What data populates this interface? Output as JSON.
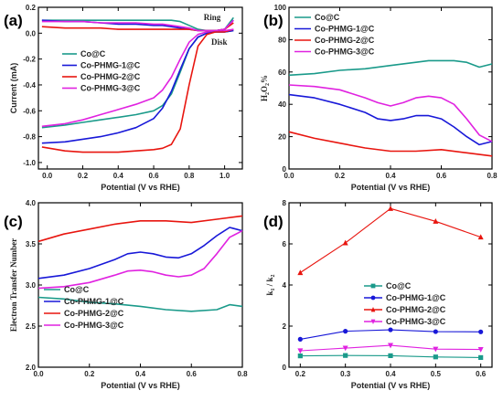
{
  "colors": {
    "s1": "#1a9a8a",
    "s2": "#1818d8",
    "s3": "#e8150f",
    "s4": "#e022e0"
  },
  "chart_data": [
    {
      "panel": "(a)",
      "type": "line",
      "xlabel": "Potential (V vs RHE)",
      "ylabel": "Current (mA)",
      "xlim": [
        -0.05,
        1.1
      ],
      "ylim": [
        -1.05,
        0.2
      ],
      "xticks": [
        "0.0",
        "0.2",
        "0.4",
        "0.6",
        "0.8",
        "1.0"
      ],
      "xtick_values": [
        0,
        0.2,
        0.4,
        0.6,
        0.8,
        1.0
      ],
      "yticks": [
        "0.2",
        "0.0",
        "-0.2",
        "-0.4",
        "-0.6",
        "-0.8",
        "-1.0"
      ],
      "ytick_values": [
        0.2,
        0,
        -0.2,
        -0.4,
        -0.6,
        -0.8,
        -1.0
      ],
      "legend_position": "middle-left",
      "annotations": [
        {
          "text": "Ring",
          "x": 0.93,
          "y": 0.1
        },
        {
          "text": "Disk",
          "x": 0.97,
          "y": -0.09
        }
      ],
      "series": [
        {
          "name": "Co@C",
          "color": "s1",
          "group": "disk",
          "x": [
            -0.03,
            0.1,
            0.2,
            0.3,
            0.4,
            0.5,
            0.6,
            0.65,
            0.7,
            0.75,
            0.8,
            0.85,
            0.9,
            0.95,
            1.0,
            1.05
          ],
          "y": [
            -0.73,
            -0.71,
            -0.69,
            -0.67,
            -0.65,
            -0.63,
            -0.6,
            -0.56,
            -0.47,
            -0.3,
            -0.12,
            -0.03,
            0.0,
            0.01,
            0.01,
            0.02
          ]
        },
        {
          "name": "Co-PHMG-1@C",
          "color": "s2",
          "group": "disk",
          "x": [
            -0.03,
            0.1,
            0.2,
            0.3,
            0.4,
            0.5,
            0.6,
            0.65,
            0.7,
            0.75,
            0.8,
            0.85,
            0.9,
            0.95,
            1.0,
            1.05
          ],
          "y": [
            -0.85,
            -0.84,
            -0.82,
            -0.8,
            -0.77,
            -0.73,
            -0.66,
            -0.58,
            -0.45,
            -0.28,
            -0.12,
            -0.03,
            0.0,
            0.01,
            0.01,
            0.02
          ]
        },
        {
          "name": "Co-PHMG-2@C",
          "color": "s3",
          "group": "disk",
          "x": [
            -0.03,
            0.1,
            0.2,
            0.3,
            0.4,
            0.5,
            0.6,
            0.65,
            0.7,
            0.75,
            0.8,
            0.85,
            0.9,
            0.95,
            1.0,
            1.05
          ],
          "y": [
            -0.88,
            -0.91,
            -0.92,
            -0.92,
            -0.92,
            -0.91,
            -0.9,
            -0.89,
            -0.86,
            -0.74,
            -0.4,
            -0.1,
            -0.01,
            0.01,
            0.01,
            0.03
          ]
        },
        {
          "name": "Co-PHMG-3@C",
          "color": "s4",
          "group": "disk",
          "x": [
            -0.03,
            0.1,
            0.2,
            0.3,
            0.4,
            0.5,
            0.6,
            0.65,
            0.7,
            0.75,
            0.8,
            0.85,
            0.9,
            0.95,
            1.0,
            1.05
          ],
          "y": [
            -0.72,
            -0.7,
            -0.67,
            -0.63,
            -0.59,
            -0.55,
            -0.5,
            -0.44,
            -0.34,
            -0.2,
            -0.07,
            -0.01,
            0.01,
            0.02,
            0.02,
            0.03
          ]
        },
        {
          "name": "Co@C",
          "color": "s1",
          "group": "ring",
          "x": [
            -0.03,
            0.1,
            0.2,
            0.3,
            0.4,
            0.5,
            0.6,
            0.65,
            0.7,
            0.75,
            0.8,
            0.85,
            0.9,
            0.95,
            1.0,
            1.05
          ],
          "y": [
            0.1,
            0.1,
            0.1,
            0.1,
            0.1,
            0.1,
            0.1,
            0.1,
            0.1,
            0.09,
            0.06,
            0.03,
            0.02,
            0.02,
            0.03,
            0.12
          ]
        },
        {
          "name": "Co-PHMG-1@C",
          "color": "s2",
          "group": "ring",
          "x": [
            -0.03,
            0.1,
            0.2,
            0.3,
            0.4,
            0.5,
            0.6,
            0.65,
            0.7,
            0.75,
            0.8,
            0.85,
            0.9,
            0.95,
            1.0,
            1.05
          ],
          "y": [
            0.1,
            0.09,
            0.09,
            0.08,
            0.07,
            0.07,
            0.06,
            0.06,
            0.05,
            0.04,
            0.03,
            0.02,
            0.02,
            0.02,
            0.03,
            0.1
          ]
        },
        {
          "name": "Co-PHMG-2@C",
          "color": "s3",
          "group": "ring",
          "x": [
            -0.03,
            0.1,
            0.2,
            0.3,
            0.4,
            0.5,
            0.6,
            0.65,
            0.7,
            0.75,
            0.8,
            0.85,
            0.9,
            0.95,
            1.0,
            1.05
          ],
          "y": [
            0.05,
            0.04,
            0.04,
            0.04,
            0.03,
            0.03,
            0.03,
            0.03,
            0.03,
            0.03,
            0.03,
            0.02,
            0.02,
            0.02,
            0.03,
            0.08
          ]
        },
        {
          "name": "Co-PHMG-3@C",
          "color": "s4",
          "group": "ring",
          "x": [
            -0.03,
            0.1,
            0.2,
            0.3,
            0.4,
            0.5,
            0.6,
            0.65,
            0.7,
            0.75,
            0.8,
            0.85,
            0.9,
            0.95,
            1.0,
            1.05
          ],
          "y": [
            0.09,
            0.09,
            0.09,
            0.08,
            0.08,
            0.08,
            0.07,
            0.07,
            0.06,
            0.05,
            0.04,
            0.02,
            0.02,
            0.02,
            0.03,
            0.1
          ]
        }
      ]
    },
    {
      "panel": "(b)",
      "type": "line",
      "xlabel": "Potential (V vs RHE)",
      "ylabel": "H2O2%",
      "xlim": [
        0.0,
        0.8
      ],
      "ylim": [
        0,
        100
      ],
      "xticks": [
        "0.0",
        "0.2",
        "0.4",
        "0.6",
        "0.8"
      ],
      "xtick_values": [
        0,
        0.2,
        0.4,
        0.6,
        0.8
      ],
      "yticks": [
        "0",
        "20",
        "40",
        "60",
        "80",
        "100"
      ],
      "ytick_values": [
        0,
        20,
        40,
        60,
        80,
        100
      ],
      "legend_position": "top-left",
      "series": [
        {
          "name": "Co@C",
          "color": "s1",
          "x": [
            0.0,
            0.1,
            0.2,
            0.3,
            0.4,
            0.5,
            0.55,
            0.6,
            0.65,
            0.7,
            0.75,
            0.8
          ],
          "y": [
            58,
            59,
            61,
            62,
            64,
            66,
            67,
            67,
            67,
            66,
            63,
            65
          ]
        },
        {
          "name": "Co-PHMG-1@C",
          "color": "s2",
          "x": [
            0.0,
            0.1,
            0.2,
            0.3,
            0.35,
            0.4,
            0.45,
            0.5,
            0.55,
            0.6,
            0.65,
            0.7,
            0.75,
            0.8
          ],
          "y": [
            46,
            44,
            40,
            35,
            31,
            30,
            31,
            33,
            33,
            31,
            26,
            20,
            15,
            17
          ]
        },
        {
          "name": "Co-PHMG-2@C",
          "color": "s3",
          "x": [
            0.0,
            0.1,
            0.2,
            0.3,
            0.4,
            0.5,
            0.6,
            0.7,
            0.8
          ],
          "y": [
            23,
            19,
            16,
            13,
            11,
            11,
            12,
            10,
            8
          ]
        },
        {
          "name": "Co-PHMG-3@C",
          "color": "s4",
          "x": [
            0.0,
            0.1,
            0.2,
            0.3,
            0.35,
            0.4,
            0.45,
            0.5,
            0.55,
            0.6,
            0.65,
            0.7,
            0.75,
            0.8
          ],
          "y": [
            52,
            51,
            49,
            44,
            41,
            39,
            41,
            44,
            45,
            44,
            40,
            31,
            21,
            17
          ]
        }
      ]
    },
    {
      "panel": "(c)",
      "type": "line",
      "xlabel": "Potential (V vs RHE)",
      "ylabel": "Electron Transfer Number",
      "xlim": [
        0.0,
        0.8
      ],
      "ylim": [
        2.0,
        4.0
      ],
      "xticks": [
        "0.0",
        "0.2",
        "0.4",
        "0.6",
        "0.8"
      ],
      "xtick_values": [
        0,
        0.2,
        0.4,
        0.6,
        0.8
      ],
      "yticks": [
        "4.0",
        "3.5",
        "3.0",
        "2.5",
        "2.0"
      ],
      "ytick_values": [
        4.0,
        3.5,
        3.0,
        2.5,
        2.0
      ],
      "legend_position": "bottom-left",
      "series": [
        {
          "name": "Co@C",
          "color": "s1",
          "x": [
            0.0,
            0.1,
            0.2,
            0.3,
            0.4,
            0.5,
            0.6,
            0.7,
            0.75,
            0.8
          ],
          "y": [
            2.85,
            2.83,
            2.79,
            2.77,
            2.74,
            2.7,
            2.68,
            2.7,
            2.76,
            2.74
          ]
        },
        {
          "name": "Co-PHMG-1@C",
          "color": "s2",
          "x": [
            0.0,
            0.1,
            0.2,
            0.3,
            0.35,
            0.4,
            0.45,
            0.5,
            0.55,
            0.6,
            0.65,
            0.7,
            0.75,
            0.8
          ],
          "y": [
            3.08,
            3.12,
            3.2,
            3.31,
            3.38,
            3.4,
            3.38,
            3.34,
            3.33,
            3.38,
            3.48,
            3.6,
            3.7,
            3.66
          ]
        },
        {
          "name": "Co-PHMG-2@C",
          "color": "s3",
          "x": [
            0.0,
            0.1,
            0.2,
            0.3,
            0.4,
            0.5,
            0.6,
            0.7,
            0.8
          ],
          "y": [
            3.53,
            3.62,
            3.68,
            3.74,
            3.78,
            3.78,
            3.76,
            3.8,
            3.84
          ]
        },
        {
          "name": "Co-PHMG-3@C",
          "color": "s4",
          "x": [
            0.0,
            0.1,
            0.2,
            0.3,
            0.35,
            0.4,
            0.45,
            0.5,
            0.55,
            0.6,
            0.65,
            0.7,
            0.75,
            0.8
          ],
          "y": [
            2.96,
            2.98,
            3.03,
            3.12,
            3.17,
            3.18,
            3.16,
            3.12,
            3.1,
            3.12,
            3.2,
            3.38,
            3.58,
            3.66
          ]
        }
      ]
    },
    {
      "panel": "(d)",
      "type": "line",
      "xlabel": "Potential (V vs RHE)",
      "ylabel": "k1 / k2",
      "xlim": [
        0.175,
        0.625
      ],
      "ylim": [
        0,
        8
      ],
      "xticks": [
        "0.2",
        "0.3",
        "0.4",
        "0.5",
        "0.6"
      ],
      "xtick_values": [
        0.2,
        0.3,
        0.4,
        0.5,
        0.6
      ],
      "yticks": [
        "0",
        "2",
        "4",
        "6",
        "8"
      ],
      "ytick_values": [
        0,
        2,
        4,
        6,
        8
      ],
      "legend_position": "middle-right",
      "markers": true,
      "series": [
        {
          "name": "Co@C",
          "color": "s1",
          "marker": "square",
          "x": [
            0.2,
            0.3,
            0.4,
            0.5,
            0.6
          ],
          "y": [
            0.55,
            0.57,
            0.56,
            0.5,
            0.47
          ]
        },
        {
          "name": "Co-PHMG-1@C",
          "color": "s2",
          "marker": "circle",
          "x": [
            0.2,
            0.3,
            0.4,
            0.5,
            0.6
          ],
          "y": [
            1.36,
            1.75,
            1.82,
            1.73,
            1.72
          ]
        },
        {
          "name": "Co-PHMG-2@C",
          "color": "s3",
          "marker": "triangle-up",
          "x": [
            0.2,
            0.3,
            0.4,
            0.5,
            0.6
          ],
          "y": [
            4.6,
            6.05,
            7.72,
            7.1,
            6.33
          ]
        },
        {
          "name": "Co-PHMG-3@C",
          "color": "s4",
          "marker": "triangle-down",
          "x": [
            0.2,
            0.3,
            0.4,
            0.5,
            0.6
          ],
          "y": [
            0.8,
            0.93,
            1.06,
            0.88,
            0.86
          ]
        }
      ]
    }
  ]
}
